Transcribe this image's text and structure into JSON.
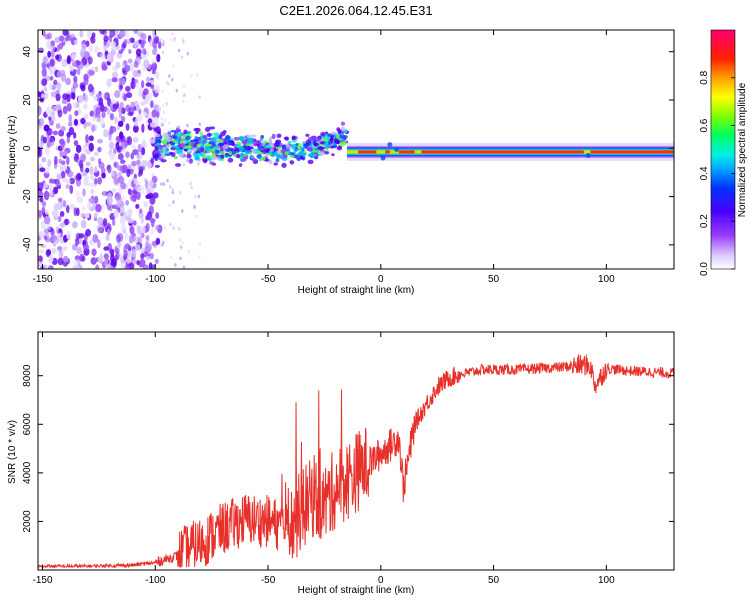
{
  "title": "C2E1.2026.064.12.45.E31",
  "chart_data": [
    {
      "type": "heatmap",
      "xlabel": "Height of straight line (km)",
      "ylabel": "Frequency (Hz)",
      "xlim": [
        -152,
        130
      ],
      "ylim": [
        -50,
        49
      ],
      "xticks": [
        -150,
        -100,
        -50,
        0,
        50,
        100
      ],
      "yticks": [
        -40,
        -20,
        0,
        20,
        40
      ],
      "colorbar": {
        "label": "Normalized spectral amplitude",
        "range": [
          0,
          1
        ],
        "ticks": [
          "0.0",
          "0.2",
          "0.4",
          "0.6",
          "0.8"
        ],
        "tick_values": [
          0,
          0.2,
          0.4,
          0.6,
          0.8
        ]
      },
      "features": [
        {
          "name": "broadband noise",
          "x_range": [
            -152,
            -98
          ],
          "y_range": [
            -50,
            49
          ],
          "amplitude": 0.15
        },
        {
          "name": "scattered faint returns",
          "x_range": [
            -98,
            -80
          ],
          "y_range": [
            -50,
            49
          ],
          "amplitude": 0.05
        },
        {
          "name": "noisy band",
          "x_range": [
            -100,
            -15
          ],
          "y_range": [
            -12,
            12
          ],
          "amplitude": 0.25
        },
        {
          "name": "main carrier line",
          "x_range": [
            -15,
            130
          ],
          "y_center": -1.5,
          "amplitude": 1.0
        }
      ]
    },
    {
      "type": "line",
      "xlabel": "Height of straight line (km)",
      "ylabel": "SNR (10 * v/v)",
      "xlim": [
        -152,
        130
      ],
      "ylim": [
        0,
        9800
      ],
      "xticks": [
        -150,
        -100,
        -50,
        0,
        50,
        100
      ],
      "yticks": [
        2000,
        4000,
        6000,
        8000
      ],
      "series": [
        {
          "name": "SNR",
          "color": "#e8302a",
          "x": [
            -152,
            -130,
            -110,
            -100,
            -90,
            -80,
            -70,
            -60,
            -50,
            -40,
            -35,
            -30,
            -25,
            -20,
            -15,
            -10,
            -5,
            0,
            5,
            8,
            10,
            15,
            20,
            25,
            30,
            35,
            40,
            45,
            50,
            60,
            70,
            80,
            90,
            93,
            95,
            100,
            110,
            120,
            130
          ],
          "y": [
            150,
            150,
            200,
            300,
            600,
            1100,
            1700,
            2100,
            2000,
            1700,
            2500,
            3000,
            2700,
            3400,
            3700,
            4100,
            4400,
            4800,
            5200,
            5500,
            3400,
            6000,
            6800,
            7500,
            7900,
            8050,
            8150,
            8250,
            8250,
            8250,
            8300,
            8350,
            8450,
            8400,
            7600,
            8300,
            8200,
            8150,
            8100
          ]
        }
      ]
    }
  ]
}
